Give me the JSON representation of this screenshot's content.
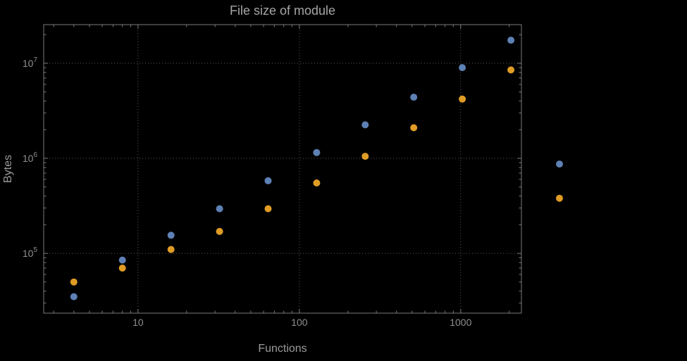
{
  "page": {
    "background": "#000000"
  },
  "chart_data": {
    "type": "scatter",
    "title": "File size of module",
    "xlabel": "Functions",
    "ylabel": "Bytes",
    "xscale": "log",
    "yscale": "log",
    "xlim": [
      2.6,
      2380
    ],
    "ylim": [
      23500,
      25500000
    ],
    "x_major_ticks": [
      10,
      100,
      1000
    ],
    "y_major_ticks": [
      100000,
      1000000,
      10000000
    ],
    "grid": "dotted",
    "legend": "none",
    "colors": {
      "series1": "#5e81b5",
      "series2": "#e09c24",
      "frame": "#7a7a7a",
      "grid": "#5a5a5a",
      "tick_text": "#8f8f8f",
      "label_text": "#9b9b9b",
      "title_text": "#a6a6a6"
    },
    "series": [
      {
        "name": "blue-series",
        "color": "#5e81b5",
        "points": [
          [
            4,
            35000
          ],
          [
            8,
            85000
          ],
          [
            16,
            155000
          ],
          [
            32,
            295000
          ],
          [
            64,
            580000
          ],
          [
            128,
            1150000
          ],
          [
            256,
            2250000
          ],
          [
            512,
            4400000
          ],
          [
            1024,
            9000000
          ],
          [
            2048,
            17500000
          ],
          [
            4096,
            870000
          ]
        ]
      },
      {
        "name": "orange-series",
        "color": "#e09c24",
        "points": [
          [
            4,
            50000
          ],
          [
            8,
            70000
          ],
          [
            16,
            110000
          ],
          [
            32,
            170000
          ],
          [
            64,
            295000
          ],
          [
            128,
            550000
          ],
          [
            256,
            1050000
          ],
          [
            512,
            2100000
          ],
          [
            1024,
            4200000
          ],
          [
            2048,
            8500000
          ],
          [
            4096,
            380000
          ]
        ]
      }
    ]
  }
}
